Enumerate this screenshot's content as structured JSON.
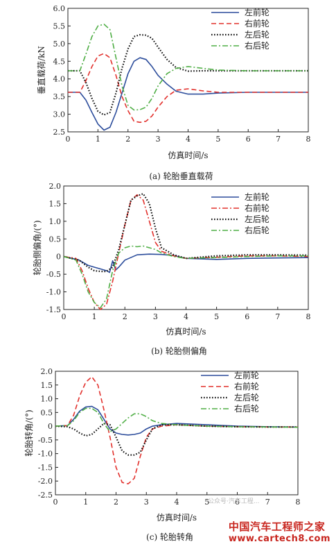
{
  "colors": {
    "blue": "#2b4c9b",
    "red": "#e2302c",
    "black": "#111111",
    "green": "#4fae45"
  },
  "watermark": {
    "brand": "中国汽车工程师之家",
    "site": "www.cartech8.com",
    "wechat": "公众号·汽车工程..."
  },
  "chart_data": [
    {
      "type": "line",
      "caption": "(a) 轮胎垂直载荷",
      "xlabel": "仿真时间/s",
      "ylabel": "垂直载荷/kN",
      "xlim": [
        0,
        8
      ],
      "ylim": [
        2.5,
        6.0
      ],
      "xticks": [
        "0",
        "1",
        "2",
        "3",
        "4",
        "5",
        "6",
        "7",
        "8"
      ],
      "yticks": [
        "2.5",
        "3.0",
        "3.5",
        "4.0",
        "4.5",
        "5.0",
        "5.5",
        "6.0"
      ],
      "legend_position": "top-right",
      "series": [
        {
          "name": "左前轮",
          "style": "solid",
          "color": "blue",
          "x": [
            0,
            0.4,
            0.6,
            0.8,
            1.0,
            1.2,
            1.4,
            1.6,
            1.8,
            2.0,
            2.2,
            2.4,
            2.6,
            2.8,
            3.0,
            3.3,
            3.6,
            4.0,
            4.5,
            5,
            6,
            7,
            8
          ],
          "y": [
            3.62,
            3.62,
            3.4,
            3.05,
            2.72,
            2.55,
            2.63,
            3.05,
            3.6,
            4.15,
            4.5,
            4.6,
            4.55,
            4.35,
            4.1,
            3.85,
            3.65,
            3.57,
            3.57,
            3.6,
            3.62,
            3.62,
            3.62
          ]
        },
        {
          "name": "右前轮",
          "style": "dashed",
          "color": "red",
          "x": [
            0,
            0.4,
            0.6,
            0.8,
            1.0,
            1.2,
            1.4,
            1.6,
            1.8,
            2.0,
            2.2,
            2.4,
            2.6,
            2.8,
            3.0,
            3.3,
            3.6,
            4.0,
            4.5,
            5,
            6,
            7,
            8
          ],
          "y": [
            3.62,
            3.62,
            3.95,
            4.35,
            4.65,
            4.72,
            4.6,
            4.1,
            3.5,
            3.1,
            2.8,
            2.77,
            2.8,
            2.95,
            3.2,
            3.5,
            3.68,
            3.72,
            3.66,
            3.62,
            3.62,
            3.62,
            3.62
          ]
        },
        {
          "name": "左后轮",
          "style": "dotted",
          "color": "black",
          "x": [
            0,
            0.4,
            0.6,
            0.8,
            1.0,
            1.2,
            1.4,
            1.6,
            1.8,
            2.0,
            2.2,
            2.4,
            2.6,
            2.8,
            3.0,
            3.3,
            3.6,
            4.0,
            4.5,
            5,
            6,
            7,
            8
          ],
          "y": [
            4.23,
            4.23,
            3.9,
            3.45,
            3.08,
            2.98,
            3.05,
            3.6,
            4.3,
            4.85,
            5.2,
            5.25,
            5.24,
            5.15,
            4.9,
            4.55,
            4.32,
            4.22,
            4.23,
            4.23,
            4.23,
            4.23,
            4.23
          ]
        },
        {
          "name": "右后轮",
          "style": "dashdot",
          "color": "green",
          "x": [
            0,
            0.4,
            0.6,
            0.8,
            1.0,
            1.2,
            1.4,
            1.6,
            1.8,
            2.0,
            2.2,
            2.4,
            2.6,
            2.8,
            3.0,
            3.3,
            3.6,
            4.0,
            4.5,
            5,
            6,
            7,
            8
          ],
          "y": [
            4.23,
            4.23,
            4.7,
            5.2,
            5.5,
            5.55,
            5.4,
            4.6,
            3.8,
            3.25,
            3.12,
            3.13,
            3.2,
            3.45,
            3.8,
            4.15,
            4.3,
            4.35,
            4.3,
            4.25,
            4.23,
            4.23,
            4.23
          ]
        }
      ]
    },
    {
      "type": "line",
      "caption": "(b) 轮胎侧偏角",
      "xlabel": "仿真时间/s",
      "ylabel": "轮胎侧偏角/(°)",
      "xlim": [
        0,
        8
      ],
      "ylim": [
        -1.5,
        2.0
      ],
      "xticks": [
        "0",
        "1",
        "2",
        "3",
        "4",
        "5",
        "6",
        "7",
        "8"
      ],
      "yticks": [
        "-1.5",
        "-1.0",
        "-0.5",
        "0",
        "0.5",
        "1.0",
        "1.5",
        "2.0"
      ],
      "legend_position": "top-right",
      "series": [
        {
          "name": "左前轮",
          "style": "solid",
          "color": "blue",
          "x": [
            0,
            0.5,
            0.8,
            1.0,
            1.2,
            1.4,
            1.5,
            1.6,
            1.7,
            1.8,
            2.0,
            2.4,
            2.8,
            3.2,
            3.6,
            4.0,
            5,
            6,
            7,
            8
          ],
          "y": [
            0,
            -0.1,
            -0.25,
            -0.3,
            -0.35,
            -0.4,
            -0.45,
            -0.12,
            -0.38,
            -0.3,
            -0.1,
            0.05,
            0.07,
            0.06,
            0.03,
            -0.05,
            -0.08,
            -0.05,
            -0.04,
            -0.03
          ]
        },
        {
          "name": "右前轮",
          "style": "dashdot",
          "color": "red",
          "x": [
            0,
            0.4,
            0.6,
            0.8,
            1.0,
            1.2,
            1.4,
            1.6,
            1.8,
            2.0,
            2.2,
            2.4,
            2.6,
            2.8,
            3.0,
            3.2,
            3.6,
            4.0,
            5,
            6,
            7,
            8
          ],
          "y": [
            0,
            -0.05,
            -0.4,
            -0.9,
            -1.3,
            -1.5,
            -1.35,
            -0.7,
            0.1,
            0.9,
            1.6,
            1.75,
            1.6,
            1.0,
            0.4,
            0.15,
            0.02,
            -0.05,
            -0.02,
            0.02,
            0.02,
            0.0
          ]
        },
        {
          "name": "左后轮",
          "style": "dotted",
          "color": "black",
          "x": [
            0,
            0.5,
            0.8,
            1.0,
            1.2,
            1.4,
            1.6,
            1.8,
            2.0,
            2.2,
            2.4,
            2.6,
            2.8,
            3.0,
            3.2,
            3.6,
            4.0,
            5,
            6,
            7,
            8
          ],
          "y": [
            0,
            -0.1,
            -0.3,
            -0.4,
            -0.42,
            -0.42,
            -0.3,
            0.2,
            0.9,
            1.6,
            1.72,
            1.78,
            1.5,
            0.8,
            0.25,
            0.05,
            -0.05,
            0.02,
            0.05,
            0.05,
            0.04
          ]
        },
        {
          "name": "右后轮",
          "style": "dashdot",
          "color": "green",
          "x": [
            0,
            0.4,
            0.6,
            0.8,
            1.0,
            1.2,
            1.4,
            1.6,
            1.8,
            2.0,
            2.2,
            2.4,
            2.6,
            2.8,
            3.0,
            3.2,
            3.6,
            4.0,
            5,
            6,
            7,
            8
          ],
          "y": [
            0,
            -0.1,
            -0.5,
            -1.0,
            -1.3,
            -1.45,
            -1.2,
            -0.4,
            0.1,
            0.25,
            0.3,
            0.28,
            0.3,
            0.25,
            0.2,
            0.1,
            0.0,
            -0.05,
            -0.03,
            0.0,
            0.02,
            0.02
          ]
        }
      ]
    },
    {
      "type": "line",
      "caption": "(c) 轮胎转角",
      "xlabel": "仿真时间/s",
      "ylabel": "轮胎转角/(°)",
      "xlim": [
        0,
        8
      ],
      "ylim": [
        -2.5,
        2.0
      ],
      "xticks": [
        "0",
        "1",
        "2",
        "3",
        "4",
        "5",
        "6",
        "7",
        "8"
      ],
      "yticks": [
        "-2.5",
        "-2.0",
        "-1.5",
        "-1.0",
        "-0.5",
        "0",
        "0.5",
        "1.0",
        "1.5",
        "2.0"
      ],
      "legend_position": "top-right",
      "series": [
        {
          "name": "左前轮",
          "style": "solid",
          "color": "blue",
          "x": [
            0,
            0.4,
            0.6,
            0.8,
            1.0,
            1.2,
            1.4,
            1.6,
            1.8,
            2.0,
            2.2,
            2.4,
            2.6,
            2.8,
            3.0,
            3.2,
            3.5,
            4.0,
            5,
            6,
            7,
            8
          ],
          "y": [
            0,
            0.02,
            0.25,
            0.55,
            0.7,
            0.72,
            0.6,
            0.25,
            -0.1,
            -0.25,
            -0.3,
            -0.32,
            -0.3,
            -0.25,
            -0.1,
            0.0,
            0.05,
            0.1,
            0.05,
            0.0,
            -0.02,
            -0.03
          ]
        },
        {
          "name": "右前轮",
          "style": "dashed",
          "color": "red",
          "x": [
            0,
            0.4,
            0.6,
            0.8,
            1.0,
            1.2,
            1.4,
            1.6,
            1.8,
            2.0,
            2.2,
            2.4,
            2.6,
            2.8,
            3.0,
            3.2,
            3.5,
            4.0,
            5,
            6,
            7,
            8
          ],
          "y": [
            0,
            0.02,
            0.4,
            1.1,
            1.6,
            1.8,
            1.5,
            0.6,
            -0.4,
            -1.5,
            -2.05,
            -2.1,
            -1.9,
            -1.1,
            -0.4,
            -0.1,
            0.0,
            0.05,
            0.0,
            -0.02,
            -0.03,
            -0.03
          ]
        },
        {
          "name": "左后轮",
          "style": "dotted",
          "color": "black",
          "x": [
            0,
            0.4,
            0.6,
            0.8,
            1.0,
            1.2,
            1.4,
            1.6,
            1.8,
            2.0,
            2.2,
            2.4,
            2.6,
            2.8,
            3.0,
            3.2,
            3.5,
            4.0,
            5,
            6,
            7,
            8
          ],
          "y": [
            0,
            -0.02,
            -0.1,
            -0.25,
            -0.35,
            -0.3,
            -0.1,
            0.1,
            0.05,
            -0.4,
            -0.9,
            -1.05,
            -1.05,
            -0.95,
            -0.5,
            -0.1,
            0.05,
            0.05,
            0.0,
            -0.02,
            -0.03,
            -0.03
          ]
        },
        {
          "name": "右后轮",
          "style": "dashdot",
          "color": "green",
          "x": [
            0,
            0.4,
            0.6,
            0.8,
            1.0,
            1.2,
            1.4,
            1.6,
            1.8,
            2.0,
            2.2,
            2.4,
            2.6,
            2.8,
            3.0,
            3.2,
            3.5,
            4.0,
            5,
            6,
            7,
            8
          ],
          "y": [
            0,
            0.02,
            0.2,
            0.5,
            0.65,
            0.65,
            0.5,
            0.1,
            -0.2,
            -0.1,
            0.1,
            0.3,
            0.45,
            0.45,
            0.35,
            0.2,
            0.1,
            0.05,
            0.0,
            -0.02,
            -0.03,
            -0.04
          ]
        }
      ]
    }
  ]
}
